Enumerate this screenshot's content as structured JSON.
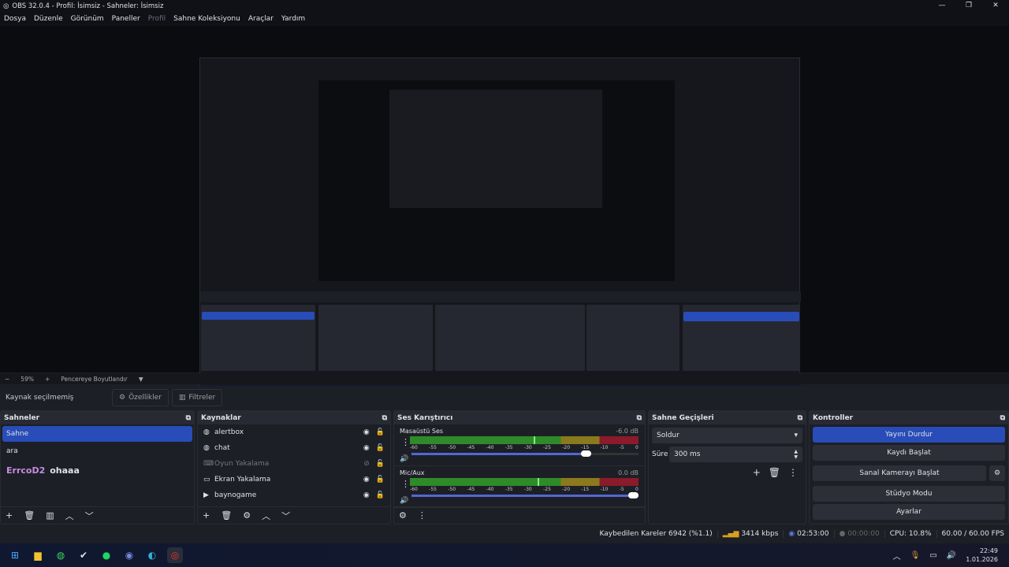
{
  "window": {
    "title": "OBS 32.0.4 - Profil: İsimsiz - Sahneler: İsimsiz"
  },
  "menu": [
    "Dosya",
    "Düzenle",
    "Görünüm",
    "Paneller",
    "Profil",
    "Sahne Koleksiyonu",
    "Araçlar",
    "Yardım"
  ],
  "zoom": {
    "minus": "−",
    "value": "59%",
    "plus": "+",
    "fit_label": "Pencereye Boyutlandır"
  },
  "source_toolbar": {
    "status": "Kaynak seçilmemiş",
    "properties": "Özellikler",
    "filters": "Filtreler"
  },
  "scenes": {
    "title": "Sahneler",
    "items": [
      "Sahne",
      "ara"
    ],
    "overlay_user": "ErrcoD2",
    "overlay_msg": "ohaaa"
  },
  "sources": {
    "title": "Kaynaklar",
    "items": [
      {
        "name": "alertbox",
        "icon": "globe-icon",
        "visible": true
      },
      {
        "name": "chat",
        "icon": "globe-icon",
        "visible": true
      },
      {
        "name": "Oyun Yakalama",
        "icon": "gamepad-icon",
        "visible": false
      },
      {
        "name": "Ekran Yakalama",
        "icon": "monitor-icon",
        "visible": true
      },
      {
        "name": "baynogame",
        "icon": "play-icon",
        "visible": true
      }
    ]
  },
  "mixer": {
    "title": "Ses Karıştırıcı",
    "ticks": [
      "-60",
      "-55",
      "-50",
      "-45",
      "-40",
      "-35",
      "-30",
      "-25",
      "-20",
      "-15",
      "-10",
      "-5",
      "0"
    ],
    "channels": [
      {
        "name": "Masaüstü Ses",
        "db": "-6.0 dB",
        "volume_pct": 79,
        "peak_pct": 54
      },
      {
        "name": "Mic/Aux",
        "db": "0.0 dB",
        "volume_pct": 100,
        "peak_pct": 56
      }
    ]
  },
  "transitions": {
    "title": "Sahne Geçişleri",
    "selected": "Soldur",
    "duration_label": "Süre",
    "duration": "300 ms"
  },
  "controls": {
    "title": "Kontroller",
    "buttons": [
      "Yayını Durdur",
      "Kaydı Başlat",
      "Sanal Kamerayı Başlat",
      "Stüdyo Modu",
      "Ayarlar"
    ],
    "accent": "#284cb8"
  },
  "status": {
    "dropped": "Kaybedilen Kareler 6942 (%1.1)",
    "bitrate": "3414 kbps",
    "stream_time": "02:53:00",
    "rec_time": "00:00:00",
    "cpu": "CPU: 10.8%",
    "fps": "60.00 / 60.00 FPS"
  },
  "taskbar": {
    "time": "22:49",
    "date": "1.01.2026"
  }
}
